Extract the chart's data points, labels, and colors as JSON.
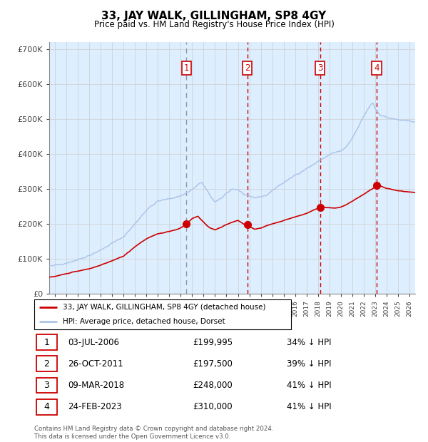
{
  "title": "33, JAY WALK, GILLINGHAM, SP8 4GY",
  "subtitle": "Price paid vs. HM Land Registry's House Price Index (HPI)",
  "hpi_label": "HPI: Average price, detached house, Dorset",
  "property_label": "33, JAY WALK, GILLINGHAM, SP8 4GY (detached house)",
  "hpi_color": "#adc6e8",
  "property_color": "#cc0000",
  "sales": [
    {
      "num": 1,
      "date": 2006.5,
      "price": 199995,
      "date_str": "03-JUL-2006",
      "price_str": "£199,995",
      "pct_str": "34% ↓ HPI"
    },
    {
      "num": 2,
      "date": 2011.82,
      "price": 197500,
      "date_str": "26-OCT-2011",
      "price_str": "£197,500",
      "pct_str": "39% ↓ HPI"
    },
    {
      "num": 3,
      "date": 2018.18,
      "price": 248000,
      "date_str": "09-MAR-2018",
      "price_str": "£248,000",
      "pct_str": "41% ↓ HPI"
    },
    {
      "num": 4,
      "date": 2023.12,
      "price": 310000,
      "date_str": "24-FEB-2023",
      "price_str": "£310,000",
      "pct_str": "41% ↓ HPI"
    }
  ],
  "footer": "Contains HM Land Registry data © Crown copyright and database right 2024.\nThis data is licensed under the Open Government Licence v3.0.",
  "ylim": [
    0,
    720000
  ],
  "xlim_start": 1994.5,
  "xlim_end": 2026.5,
  "yticks": [
    0,
    100000,
    200000,
    300000,
    400000,
    500000,
    600000,
    700000
  ],
  "ytick_labels": [
    "£0",
    "£100K",
    "£200K",
    "£300K",
    "£400K",
    "£500K",
    "£600K",
    "£700K"
  ],
  "bg_shade_color": "#ddeeff",
  "bg_hatch_color": "#c8d8ee"
}
